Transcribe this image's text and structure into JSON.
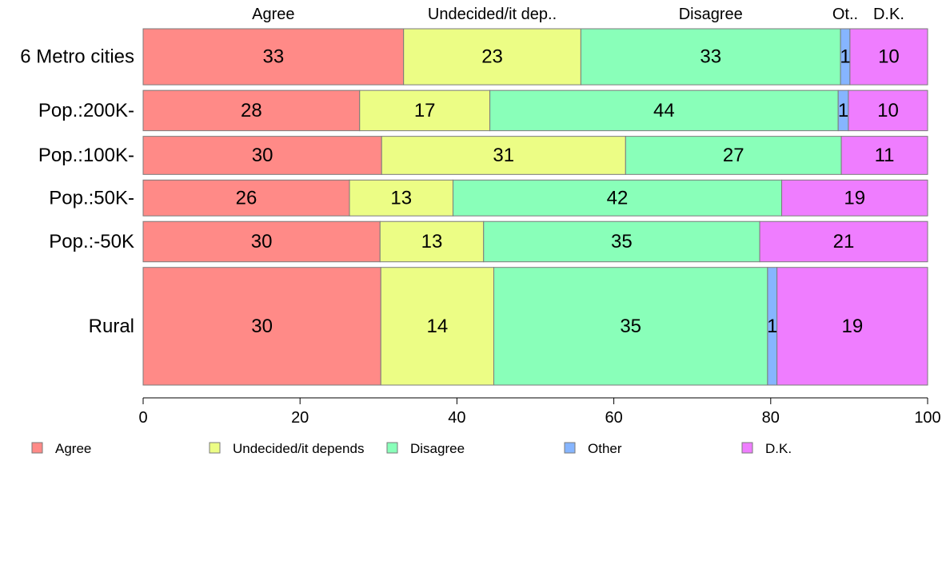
{
  "chart_data": {
    "type": "bar",
    "orientation": "horizontal",
    "stacked": true,
    "title": "",
    "xlabel": "",
    "ylabel": "",
    "xlim": [
      0,
      100
    ],
    "x_ticks": [
      0,
      20,
      40,
      60,
      80,
      100
    ],
    "categories": [
      "6 Metro cities",
      "Pop.:200K-",
      "Pop.:100K-",
      "Pop.:50K-",
      "Pop.:-50K",
      "Rural"
    ],
    "relative_row_heights": [
      1,
      0.72,
      0.68,
      0.64,
      0.72,
      2.1
    ],
    "series": [
      {
        "name": "Agree",
        "column_label": "Agree",
        "color": "#ff8a87",
        "values": [
          33.2,
          27.6,
          30.4,
          26.3,
          30.2,
          30.3
        ],
        "labels": [
          "33",
          "28",
          "30",
          "26",
          "30",
          "30"
        ]
      },
      {
        "name": "Undecided/it depends",
        "column_label": "Undecided/it dep..",
        "color": "#ecfd85",
        "values": [
          22.6,
          16.6,
          31.1,
          13.2,
          13.2,
          14.4
        ],
        "labels": [
          "23",
          "17",
          "31",
          "13",
          "13",
          "14"
        ]
      },
      {
        "name": "Disagree",
        "column_label": "Disagree",
        "color": "#89ffb9",
        "values": [
          33.1,
          44.4,
          27.5,
          41.9,
          35.2,
          34.9
        ],
        "labels": [
          "33",
          "44",
          "27",
          "42",
          "35",
          "35"
        ]
      },
      {
        "name": "Other",
        "column_label": "Ot..",
        "color": "#86b5ff",
        "values": [
          1.2,
          1.3,
          0,
          0,
          0,
          1.2
        ],
        "labels": [
          "1",
          "1",
          "",
          "",
          "",
          "1"
        ]
      },
      {
        "name": "D.K.",
        "column_label": "D.K.",
        "color": "#ef7dff",
        "values": [
          9.9,
          10.1,
          11.0,
          18.6,
          21.4,
          19.2
        ],
        "labels": [
          "10",
          "10",
          "11",
          "19",
          "21",
          "19"
        ]
      }
    ],
    "legend": {
      "position": "bottom"
    }
  }
}
